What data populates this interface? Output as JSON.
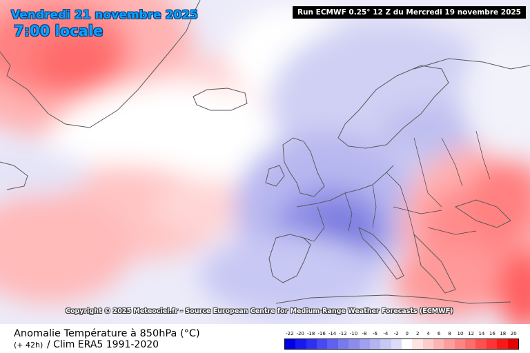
{
  "header": {
    "date": "Vendredi 21 novembre 2025",
    "time": "7:00 locale",
    "run": "Run ECMWF 0.25° 12 Z du Mercredi 19 novembre 2025"
  },
  "map": {
    "copyright": "Copyright © 2025 Meteociel.fr - Source European Centre for Medium-Range Weather Forecasts (ECMWF)",
    "colors": {
      "coastline": "#5a5a5a",
      "border": "#444444"
    }
  },
  "footer": {
    "title": "Anomalie Température à 850hPa (°C)",
    "lead": "(+ 42h)",
    "clim": "/ Clim ERA5 1991-2020"
  },
  "legend": {
    "labels": [
      "-22",
      "-20",
      "-18",
      "-16",
      "-14",
      "-12",
      "-10",
      "-8",
      "-6",
      "-4",
      "-2",
      "0",
      "2",
      "4",
      "6",
      "8",
      "10",
      "12",
      "14",
      "16",
      "18",
      "20"
    ],
    "colors": [
      "#0000e8",
      "#1818f0",
      "#2f2ff4",
      "#4848f4",
      "#6060f2",
      "#7878f0",
      "#8c8cee",
      "#a0a0f0",
      "#b4b4f2",
      "#c8c8f6",
      "#dcdcfa",
      "#ffffff",
      "#ffe4e4",
      "#ffcccc",
      "#ffb4b4",
      "#ff9c9c",
      "#ff8484",
      "#ff6c6c",
      "#ff5050",
      "#ff3434",
      "#f81818",
      "#e80000"
    ]
  }
}
